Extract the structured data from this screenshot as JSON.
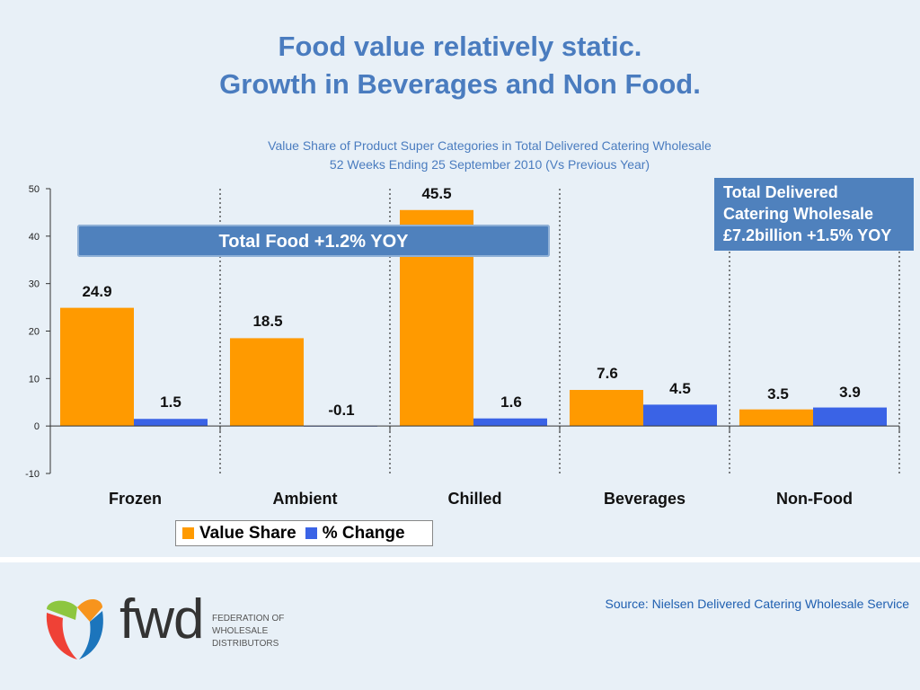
{
  "slide": {
    "title_line1": "Food value relatively static.",
    "title_line2": "Growth in Beverages and Non Food.",
    "subtitle_line1": "Value Share of Product Super Categories in Total Delivered Catering Wholesale",
    "subtitle_line2": "52 Weeks Ending 25 September 2010 (Vs Previous Year)",
    "food_banner": "Total Food +1.2% YOY",
    "total_box": [
      "Total Delivered",
      "Catering Wholesale",
      "£7.2billion +1.5% YOY"
    ],
    "source": "Source: Nielsen Delivered Catering Wholesale Service",
    "org_lines": [
      "FEDERATION OF",
      "WHOLESALE",
      "DISTRIBUTORS"
    ],
    "logo_text": "fwd"
  },
  "colors": {
    "value_share": "#ff9a00",
    "pct_change": "#3a63e6",
    "accent": "#4a7cbf"
  },
  "chart_data": {
    "type": "bar",
    "categories": [
      "Frozen",
      "Ambient",
      "Chilled",
      "Beverages",
      "Non-Food"
    ],
    "series": [
      {
        "name": "Value Share",
        "values": [
          24.9,
          18.5,
          45.5,
          7.6,
          3.5
        ],
        "labels": [
          "24.9",
          "18.5",
          "45.5",
          "7.6",
          "3.5"
        ]
      },
      {
        "name": "% Change",
        "values": [
          1.5,
          -0.1,
          1.6,
          4.5,
          3.9
        ],
        "labels": [
          "1.5",
          "-0.1",
          "1.6",
          "4.5",
          "3.9"
        ]
      }
    ],
    "ylim": [
      -10,
      50
    ],
    "yticks": [
      -10,
      0,
      10,
      20,
      30,
      40,
      50
    ],
    "legend": "bottom"
  }
}
